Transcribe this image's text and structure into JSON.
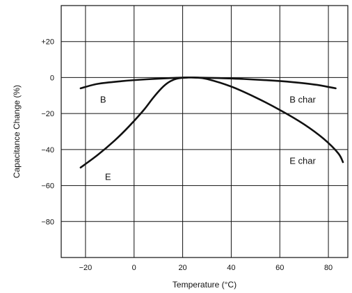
{
  "chart_data": {
    "type": "line",
    "title": "",
    "xlabel": "Temperature (°C)",
    "ylabel": "Capacitance Change (%)",
    "xlim": [
      -30,
      88
    ],
    "ylim": [
      -100,
      40
    ],
    "grid": true,
    "legend": "none",
    "x_ticks": [
      {
        "value": -20,
        "label": "−20"
      },
      {
        "value": 0,
        "label": "0"
      },
      {
        "value": 20,
        "label": "20"
      },
      {
        "value": 40,
        "label": "40"
      },
      {
        "value": 60,
        "label": "60"
      },
      {
        "value": 80,
        "label": "80"
      }
    ],
    "x_grid": [
      -20,
      0,
      20,
      40,
      60,
      80
    ],
    "y_ticks": [
      {
        "value": 20,
        "label": "+20"
      },
      {
        "value": 0,
        "label": "0"
      },
      {
        "value": -20,
        "label": "−20"
      },
      {
        "value": -40,
        "label": "−40"
      },
      {
        "value": -60,
        "label": "−60"
      },
      {
        "value": -80,
        "label": "−80"
      }
    ],
    "y_grid": [
      20,
      0,
      -20,
      -40,
      -60,
      -80
    ],
    "series": [
      {
        "x": [
          -22,
          -15,
          -5,
          5,
          15,
          20,
          25,
          35,
          45,
          55,
          65,
          75,
          83
        ],
        "y": [
          -6,
          -3.5,
          -2,
          -1,
          -0.3,
          0,
          0,
          -0.3,
          -0.8,
          -1.5,
          -2.5,
          -4,
          -6
        ],
        "color": "#111111"
      },
      {
        "x": [
          -22,
          -15,
          -8,
          -2,
          4,
          8,
          12,
          15,
          18,
          22,
          25,
          30,
          40,
          50,
          60,
          70,
          78,
          84,
          86
        ],
        "y": [
          -50,
          -43,
          -35,
          -27,
          -18,
          -11,
          -5,
          -2,
          -0.5,
          0,
          0,
          -0.8,
          -5,
          -11,
          -18,
          -26,
          -34,
          -42,
          -47
        ],
        "color": "#111111"
      }
    ],
    "annotations": [
      {
        "text": "B",
        "x": -14,
        "y": -12
      },
      {
        "text": "B char",
        "x": 64,
        "y": -12
      },
      {
        "text": "E",
        "x": -12,
        "y": -55
      },
      {
        "text": "E char",
        "x": 64,
        "y": -46
      }
    ]
  }
}
